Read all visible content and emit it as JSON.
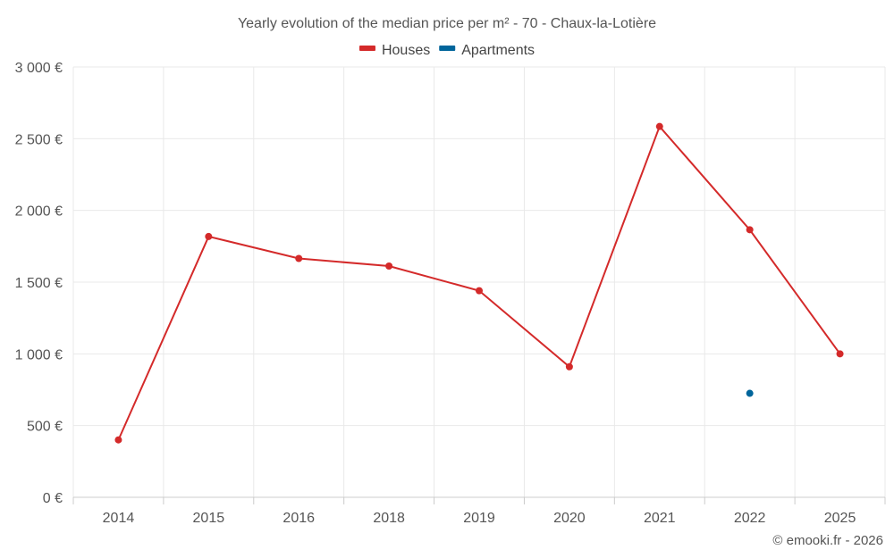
{
  "chart_data": {
    "type": "line",
    "title": "Yearly evolution of the median price per m² - 70 - Chaux-la-Lotière",
    "categories": [
      "2014",
      "2015",
      "2016",
      "2018",
      "2019",
      "2020",
      "2021",
      "2022",
      "2025"
    ],
    "series": [
      {
        "name": "Houses",
        "color": "#d42a2a",
        "values": [
          400,
          1818,
          1665,
          1612,
          1440,
          910,
          2585,
          1865,
          1000
        ]
      },
      {
        "name": "Apartments",
        "color": "#00659b",
        "values": [
          null,
          null,
          null,
          null,
          null,
          null,
          null,
          725,
          null
        ]
      }
    ],
    "ylim": [
      0,
      3000
    ],
    "yticks": [
      0,
      500,
      1000,
      1500,
      2000,
      2500,
      3000
    ],
    "ytick_labels": [
      "0 €",
      "500 €",
      "1 000 €",
      "1 500 €",
      "2 000 €",
      "2 500 €",
      "3 000 €"
    ],
    "xlabel": "",
    "ylabel": "",
    "legend_position": "top-center",
    "grid": true
  },
  "credit": "© emooki.fr - 2026"
}
